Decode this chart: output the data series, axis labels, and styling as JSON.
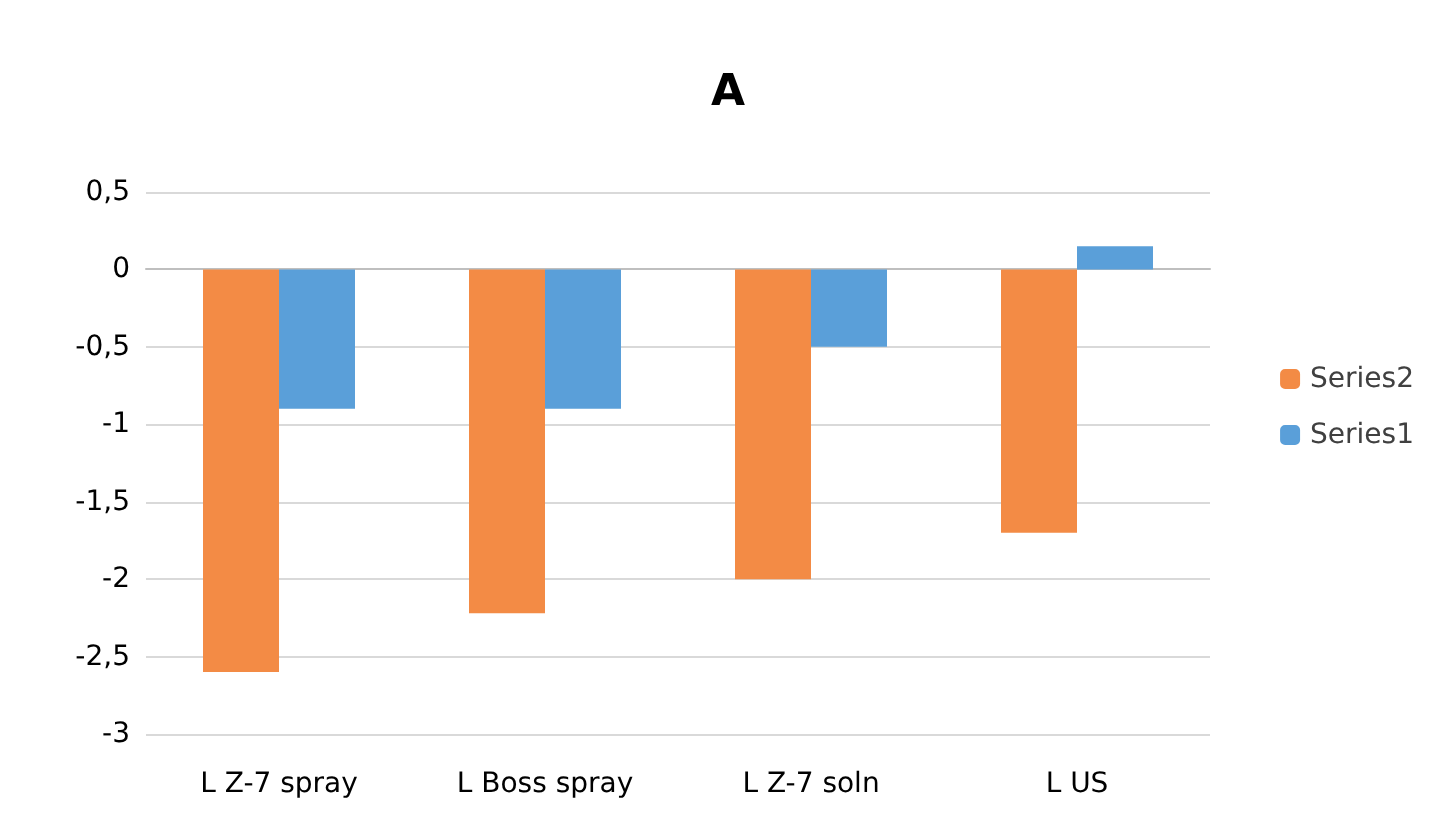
{
  "chart_data": {
    "type": "bar",
    "title": "A",
    "categories": [
      "L Z-7 spray",
      "L Boss spray",
      "L Z-7 soln",
      "L US"
    ],
    "series": [
      {
        "name": "Series2",
        "color": "#f38b45",
        "values": [
          -2.6,
          -2.22,
          -2.0,
          -1.7
        ]
      },
      {
        "name": "Series1",
        "color": "#5a9fd9",
        "values": [
          -0.9,
          -0.9,
          -0.5,
          0.15
        ]
      }
    ],
    "ylim": [
      -3,
      0.5
    ],
    "yticks": [
      {
        "value": 0.5,
        "label": "0,5"
      },
      0,
      {
        "value": -0.5,
        "label": "-0,5"
      },
      -1,
      {
        "value": -1.5,
        "label": "-1,5"
      },
      -2,
      {
        "value": -2.5,
        "label": "-2,5"
      },
      -3
    ],
    "grid": "y",
    "legend": "right"
  }
}
